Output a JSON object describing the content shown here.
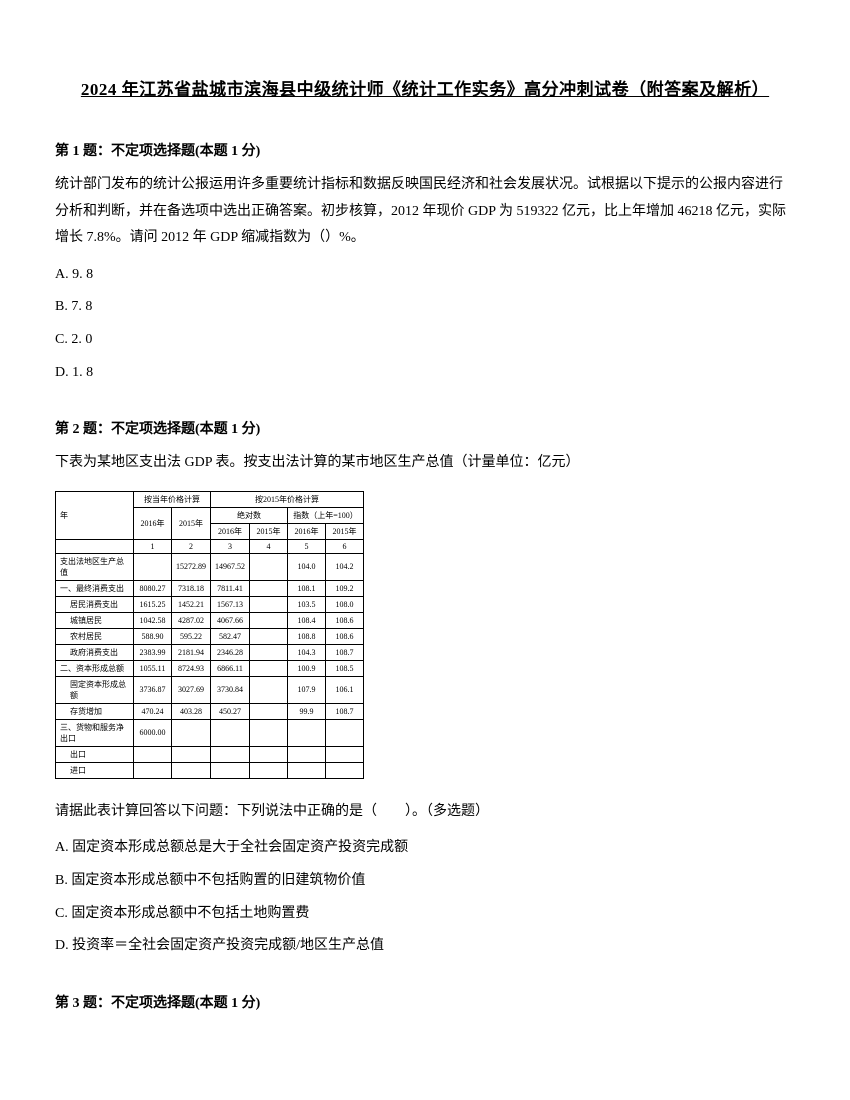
{
  "title": "2024 年江苏省盐城市滨海县中级统计师《统计工作实务》高分冲刺试卷（附答案及解析）",
  "q1": {
    "header": "第 1 题：不定项选择题(本题 1 分)",
    "text": "统计部门发布的统计公报运用许多重要统计指标和数据反映国民经济和社会发展状况。试根据以下提示的公报内容进行分析和判断，并在备选项中选出正确答案。初步核算，2012 年现价 GDP 为 519322 亿元，比上年增加 46218 亿元，实际增长 7.8%。请问 2012 年 GDP 缩减指数为（）%。",
    "options": {
      "a": "A. 9. 8",
      "b": "B. 7. 8",
      "c": "C. 2. 0",
      "d": "D. 1. 8"
    }
  },
  "q2": {
    "header": "第 2 题：不定项选择题(本题 1 分)",
    "intro": "下表为某地区支出法 GDP 表。按支出法计算的某市地区生产总值（计量单位：亿元）",
    "table": {
      "header_group1": "按当年价格计算",
      "header_group2": "按2015年价格计算",
      "sub_header1": "绝对数",
      "sub_header2": "指数（上年=100）",
      "years": {
        "y2016_1": "2016年",
        "y2015_1": "2015年",
        "y2016_2": "2016年",
        "y2015_2": "2015年",
        "y2016_3": "2016年",
        "y2015_3": "2015年"
      },
      "col_nums": {
        "c1": "1",
        "c2": "2",
        "c3": "3",
        "c4": "4",
        "c5": "5",
        "c6": "6"
      },
      "row_year_label": "年",
      "rows": [
        {
          "label": "支出法地区生产总值",
          "v1": "",
          "v2": "15272.89",
          "v3": "14967.52",
          "v4": "",
          "v5": "104.0",
          "v6": "104.2"
        },
        {
          "label": "一、最终消费支出",
          "v1": "8080.27",
          "v2": "7318.18",
          "v3": "7811.41",
          "v4": "",
          "v5": "108.1",
          "v6": "109.2"
        },
        {
          "label": "居民消费支出",
          "v1": "1615.25",
          "v2": "1452.21",
          "v3": "1567.13",
          "v4": "",
          "v5": "103.5",
          "v6": "108.0",
          "indent": true
        },
        {
          "label": "城镇居民",
          "v1": "1042.58",
          "v2": "4287.02",
          "v3": "4067.66",
          "v4": "",
          "v5": "108.4",
          "v6": "108.6",
          "indent": true
        },
        {
          "label": "农村居民",
          "v1": "588.90",
          "v2": "595.22",
          "v3": "582.47",
          "v4": "",
          "v5": "108.8",
          "v6": "108.6",
          "indent": true
        },
        {
          "label": "政府消费支出",
          "v1": "2383.99",
          "v2": "2181.94",
          "v3": "2346.28",
          "v4": "",
          "v5": "104.3",
          "v6": "108.7",
          "indent": true
        },
        {
          "label": "二、资本形成总额",
          "v1": "1055.11",
          "v2": "8724.93",
          "v3": "6866.11",
          "v4": "",
          "v5": "100.9",
          "v6": "108.5"
        },
        {
          "label": "固定资本形成总额",
          "v1": "3736.87",
          "v2": "3027.69",
          "v3": "3730.84",
          "v4": "",
          "v5": "107.9",
          "v6": "106.1",
          "indent": true
        },
        {
          "label": "存货增加",
          "v1": "470.24",
          "v2": "403.28",
          "v3": "450.27",
          "v4": "",
          "v5": "99.9",
          "v6": "108.7",
          "indent": true
        },
        {
          "label": "三、货物和服务净出口",
          "v1": "6000.00",
          "v2": "",
          "v3": "",
          "v4": "",
          "v5": "",
          "v6": ""
        },
        {
          "label": "出口",
          "v1": "",
          "v2": "",
          "v3": "",
          "v4": "",
          "v5": "",
          "v6": "",
          "indent": true
        },
        {
          "label": "进口",
          "v1": "",
          "v2": "",
          "v3": "",
          "v4": "",
          "v5": "",
          "v6": "",
          "indent": true
        }
      ]
    },
    "followup": "请据此表计算回答以下问题：下列说法中正确的是（　　）。（多选题）",
    "options": {
      "a": "A. 固定资本形成总额总是大于全社会固定资产投资完成额",
      "b": "B. 固定资本形成总额中不包括购置的旧建筑物价值",
      "c": "C. 固定资本形成总额中不包括土地购置费",
      "d": "D. 投资率＝全社会固定资产投资完成额/地区生产总值"
    }
  },
  "q3": {
    "header": "第 3 题：不定项选择题(本题 1 分)"
  }
}
